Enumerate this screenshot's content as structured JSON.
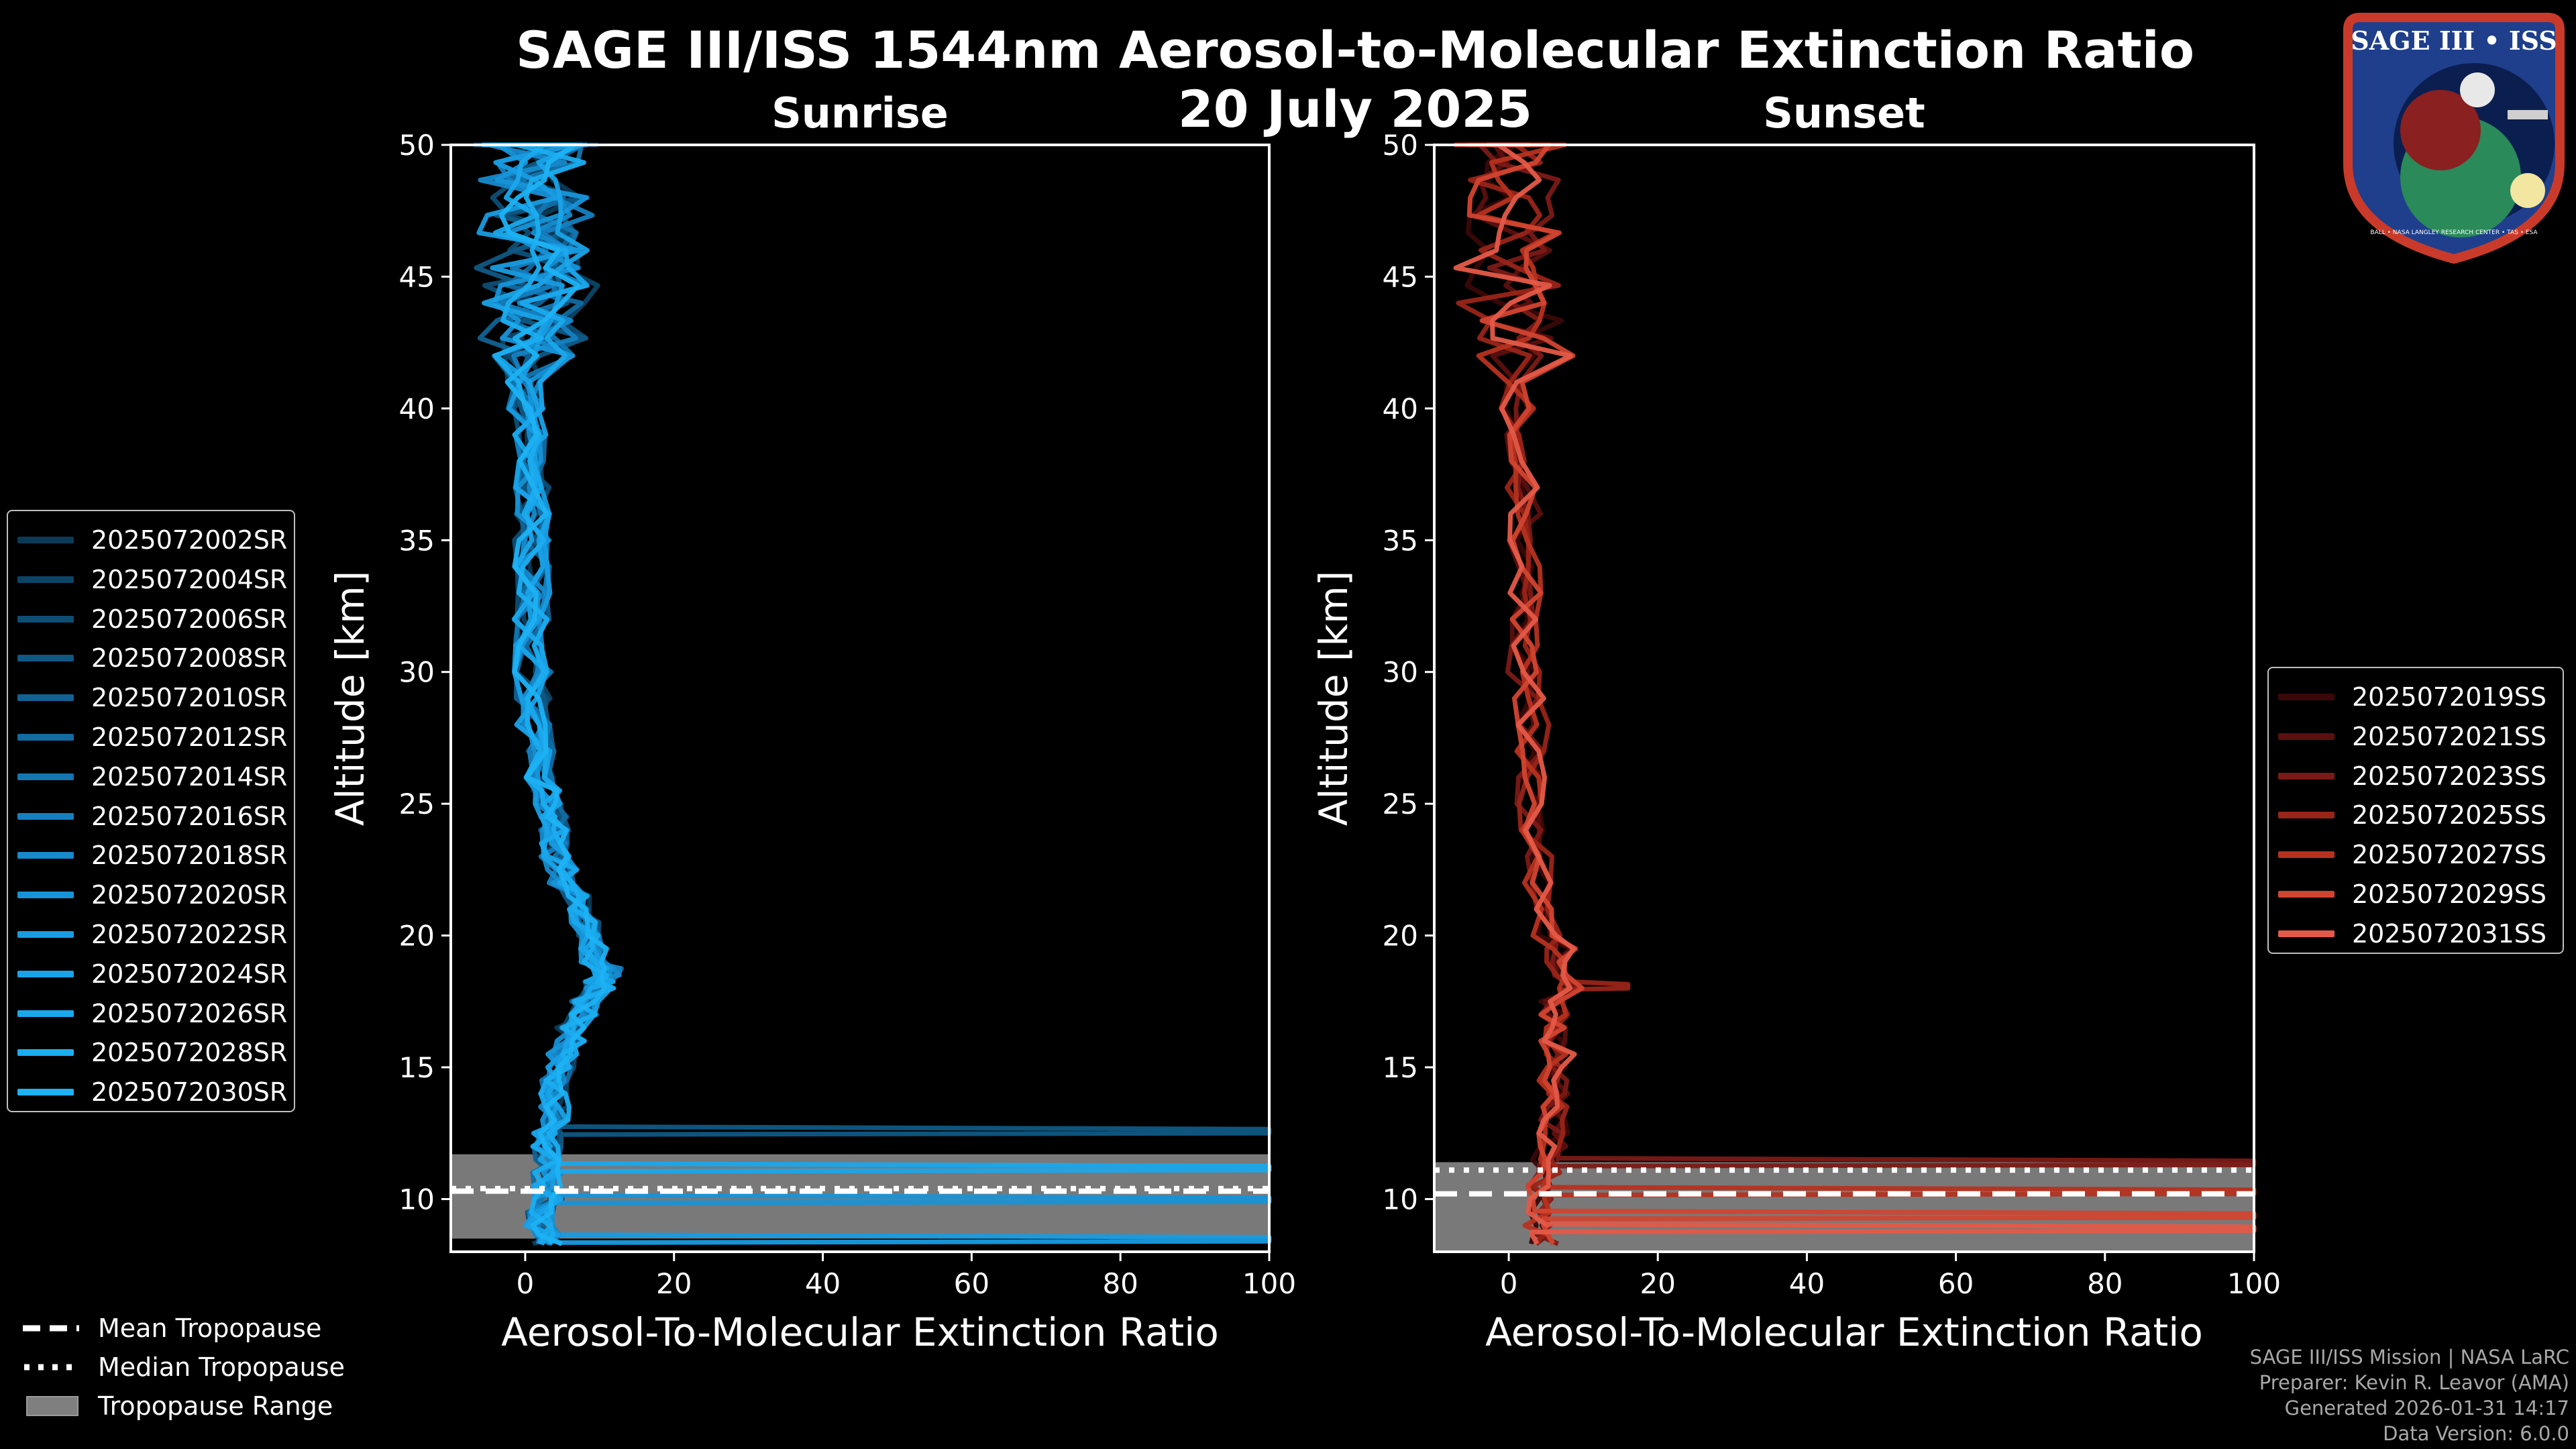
{
  "page": {
    "title_line1": "SAGE III/ISS 1544nm Aerosol-to-Molecular Extinction Ratio",
    "title_line2": "20 July 2025"
  },
  "logo": {
    "text_top": "SAGE III • ISS",
    "text_ring": "BALL • NASA LANGLEY RESEARCH CENTER • TAS • ESA"
  },
  "footer": {
    "line1": "SAGE III/ISS Mission | NASA LaRC",
    "line2": "Preparer: Kevin R. Leavor (AMA)",
    "line3": "Generated 2026-01-31 14:17",
    "line4": "Data Version: 6.0.0"
  },
  "bottom_legend": {
    "mean": "Mean Tropopause",
    "median": "Median Tropopause",
    "range": "Tropopause Range"
  },
  "colors": {
    "sunrise": [
      "#0b3a57",
      "#0c4466",
      "#0e4e75",
      "#0f5884",
      "#116293",
      "#126ca2",
      "#1376b1",
      "#1580c0",
      "#168acc",
      "#1794d8",
      "#189ce2",
      "#19a3e8",
      "#1aa8ec",
      "#1badf0",
      "#1cb2f4"
    ],
    "sunset": [
      "#3a0808",
      "#5a100f",
      "#7a1a16",
      "#992418",
      "#b6321f",
      "#d14430",
      "#e45a48"
    ],
    "range_fill": "#7f7f7f"
  },
  "chart_data": [
    {
      "type": "line",
      "title": "Sunrise",
      "xlabel": "Aerosol-To-Molecular Extinction Ratio",
      "ylabel": "Altitude [km]",
      "xlim": [
        -10,
        100
      ],
      "ylim": [
        8,
        50
      ],
      "xticks": [
        0,
        20,
        40,
        60,
        80,
        100
      ],
      "yticks": [
        10,
        15,
        20,
        25,
        30,
        35,
        40,
        45,
        50
      ],
      "legend_position": "outside-left",
      "series": [
        {
          "name": "2025072002SR"
        },
        {
          "name": "2025072004SR"
        },
        {
          "name": "2025072006SR"
        },
        {
          "name": "2025072008SR"
        },
        {
          "name": "2025072010SR"
        },
        {
          "name": "2025072012SR"
        },
        {
          "name": "2025072014SR"
        },
        {
          "name": "2025072016SR"
        },
        {
          "name": "2025072018SR"
        },
        {
          "name": "2025072020SR"
        },
        {
          "name": "2025072022SR"
        },
        {
          "name": "2025072024SR"
        },
        {
          "name": "2025072026SR"
        },
        {
          "name": "2025072028SR"
        },
        {
          "name": "2025072030SR"
        }
      ],
      "base_profile": {
        "alt": [
          8.3,
          9,
          10,
          11,
          12,
          13,
          14,
          15,
          16,
          17,
          18,
          18.5,
          19,
          20,
          21,
          22,
          23,
          24,
          25,
          26,
          28,
          30,
          32,
          34,
          36,
          38,
          40,
          42,
          44,
          46,
          48,
          50
        ],
        "ratio": [
          3,
          2,
          3,
          3,
          3,
          4,
          4,
          5,
          6,
          8,
          10,
          11,
          9,
          8,
          7,
          5,
          4,
          4,
          3,
          2,
          1,
          1,
          1,
          1,
          1,
          1,
          0,
          0,
          0,
          0,
          0,
          0
        ]
      },
      "spikes": [
        {
          "series": 3,
          "alt": 12.5,
          "ratio": 100
        },
        {
          "series": 12,
          "alt": 11.1,
          "ratio": 100
        },
        {
          "series": 9,
          "alt": 9.9,
          "ratio": 100
        },
        {
          "series": 10,
          "alt": 8.4,
          "ratio": 100
        }
      ],
      "tropopause": {
        "mean": 10.3,
        "median": 10.4,
        "range": [
          8.5,
          11.7
        ]
      }
    },
    {
      "type": "line",
      "title": "Sunset",
      "xlabel": "Aerosol-To-Molecular Extinction Ratio",
      "ylabel": "Altitude [km]",
      "xlim": [
        -10,
        100
      ],
      "ylim": [
        8,
        50
      ],
      "xticks": [
        0,
        20,
        40,
        60,
        80,
        100
      ],
      "yticks": [
        10,
        15,
        20,
        25,
        30,
        35,
        40,
        45,
        50
      ],
      "legend_position": "right",
      "series": [
        {
          "name": "2025072019SS"
        },
        {
          "name": "2025072021SS"
        },
        {
          "name": "2025072023SS"
        },
        {
          "name": "2025072025SS"
        },
        {
          "name": "2025072027SS"
        },
        {
          "name": "2025072029SS"
        },
        {
          "name": "2025072031SS"
        }
      ],
      "base_profile": {
        "alt": [
          8.3,
          9,
          10,
          11,
          12,
          13,
          14,
          15,
          16,
          17,
          18,
          19,
          20,
          22,
          24,
          26,
          28,
          30,
          32,
          34,
          36,
          38,
          40,
          42,
          44,
          46,
          48,
          50
        ],
        "ratio": [
          5,
          4,
          4,
          5,
          6,
          6,
          6,
          7,
          6,
          6,
          8,
          7,
          5,
          4,
          3,
          3,
          3,
          2,
          2,
          2,
          2,
          2,
          1,
          1,
          -1,
          -1,
          -2,
          -2
        ],
        "spikes": []
      },
      "spikes": [
        {
          "series": 2,
          "alt": 11.3,
          "ratio": 100
        },
        {
          "series": 4,
          "alt": 10.2,
          "ratio": 100
        },
        {
          "series": 5,
          "alt": 9.3,
          "ratio": 100
        },
        {
          "series": 6,
          "alt": 8.8,
          "ratio": 100
        },
        {
          "series": 3,
          "alt": 18.0,
          "ratio": 16
        }
      ],
      "tropopause": {
        "mean": 10.2,
        "median": 11.1,
        "range": [
          8.0,
          11.4
        ]
      }
    }
  ]
}
